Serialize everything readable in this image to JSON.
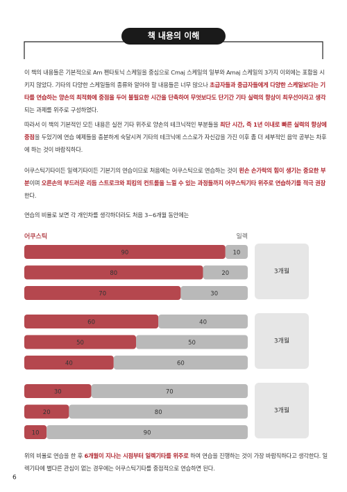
{
  "header": {
    "title": "책 내용의 이해"
  },
  "paragraphs": [
    {
      "runs": [
        {
          "text": "이 책의 내용들은 기본적으로 Am 펜타토닉 스케일을 중심으로 Cmaj 스케일의 일부와 Amaj 스케일의 3가지 이외에는 포함을 시키지 않았다. 기타의 다양한 스케일들의 종류와 알아야 할 내용들은 너무 많으나 ",
          "em": false
        },
        {
          "text": "초급자들과 중급자들에게 다양한 스케일보다는 기타를 연습하는 양손의 최적화에 중점을 두어 불필요한 시간을 단축하여 무엇보다도 단기간 기타 실력의 향상이 최우선이라고 생각",
          "em": true
        },
        {
          "text": "되는 과제를 위주로 구성하였다.",
          "em": false
        }
      ]
    },
    {
      "runs": [
        {
          "text": "따라서 이 책의 기본적인 모든 내용은 실전 기타 위주로 양손의 테크닉적인 부분들을 ",
          "em": false
        },
        {
          "text": "최단 시간, 즉 1년 이내로 빠른 실력의 향상에 중점",
          "em": true
        },
        {
          "text": "을 두었기에 연습 예제들을 충분하게 숙달시켜 기타의 테크닉에 스스로가 자신감을 가진 이후 좀 더 세부적인 음악 공부는 차후에 하는 것이 바람직하다.",
          "em": false
        }
      ]
    },
    {
      "runs": [
        {
          "text": "어쿠스틱기타이든 일렉기타이든 기본기의 연습이므로 처음에는 어쿠스틱으로 연습하는 것이 ",
          "em": false
        },
        {
          "text": "왼손 손가락의 힘이 생기는 중요한 부분",
          "em": true
        },
        {
          "text": "이며 ",
          "em": false
        },
        {
          "text": "오른손의 부드러운 리듬 스트로크와 피킹의 컨트롤을 느낄 수 있는 과정들까지 어쿠스틱기타 위주로 연습하기를 적극 권장",
          "em": true
        },
        {
          "text": "한다.",
          "em": false
        }
      ]
    },
    {
      "runs": [
        {
          "text": "연습의 비율로 보면 각 개인차를 생각하더라도 처음 3~6개월 동안에는",
          "em": false
        }
      ]
    }
  ],
  "chart_data": {
    "type": "bar",
    "orientation": "horizontal",
    "stacked": true,
    "categories": [
      null,
      null,
      null,
      null,
      null,
      null,
      null,
      null,
      null
    ],
    "groups": [
      "3개월",
      "3개월",
      "3개월"
    ],
    "series": [
      {
        "name": "어쿠스틱",
        "color": "#b5474e",
        "values": [
          90,
          80,
          70,
          60,
          50,
          40,
          30,
          20,
          10
        ]
      },
      {
        "name": "일렉",
        "color": "#b9b9b9",
        "values": [
          10,
          20,
          30,
          40,
          50,
          60,
          70,
          80,
          90
        ]
      }
    ],
    "xlim": [
      0,
      100
    ]
  },
  "closing": {
    "runs": [
      {
        "text": "위의 비율로 연습을 한 후 ",
        "em": false
      },
      {
        "text": "6개월이 지나는 시점부터 일렉기타를 위주로",
        "em": true
      },
      {
        "text": " 하여 연습을 진행하는 것이 가장 바람직하다고 생각한다. 일렉기타에 별다른 관심이 없는 경우에는 어쿠스틱기타를 중점적으로 연습하면 된다.",
        "em": false
      }
    ]
  },
  "page_number": "6"
}
